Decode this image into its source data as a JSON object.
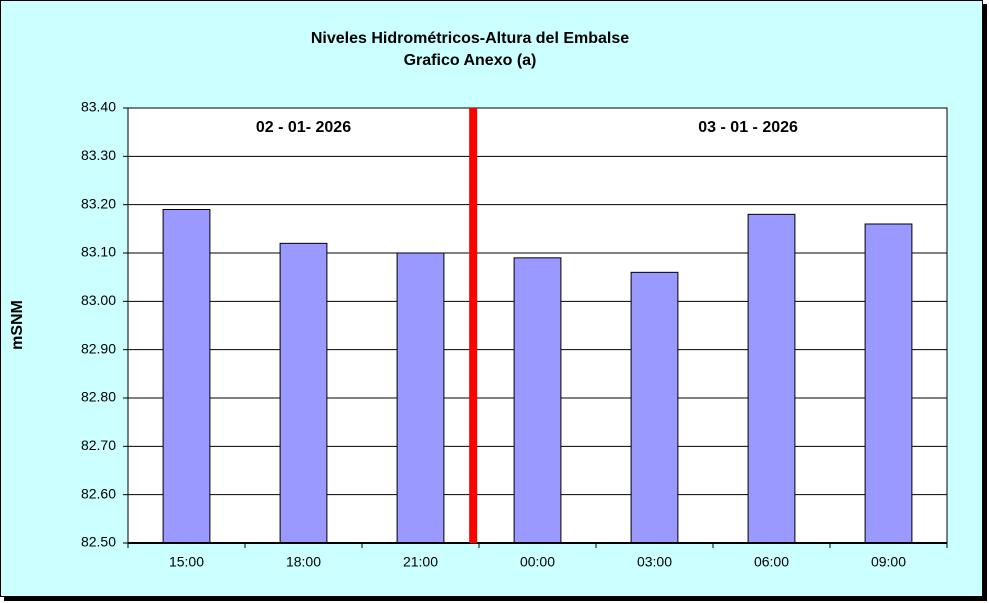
{
  "chart_data": {
    "type": "bar",
    "title": "Niveles Hidrométricos-Altura del Embalse",
    "subtitle": "Grafico Anexo (a)",
    "y_label": "mSNM",
    "annotations": [
      "02 - 01- 2026",
      "03 - 01 - 2026"
    ],
    "categories": [
      "15:00",
      "18:00",
      "21:00",
      "00:00",
      "03:00",
      "06:00",
      "09:00"
    ],
    "values": [
      83.19,
      83.12,
      83.1,
      83.09,
      83.06,
      83.18,
      83.16
    ],
    "color": "#9999ff",
    "ylim": [
      82.5,
      83.4
    ],
    "yticks": [
      {
        "value": 82.5,
        "label": "82.50"
      },
      {
        "value": 82.6,
        "label": "82.60"
      },
      {
        "value": 82.7,
        "label": "82.70"
      },
      {
        "value": 82.8,
        "label": "82.80"
      },
      {
        "value": 82.9,
        "label": "82.90"
      },
      {
        "value": 83.0,
        "label": "83.00"
      },
      {
        "value": 83.1,
        "label": "83.10"
      },
      {
        "value": 83.2,
        "label": "83.20"
      },
      {
        "value": 83.3,
        "label": "83.30"
      },
      {
        "value": 83.4,
        "label": "83.40"
      }
    ],
    "grid": true
  }
}
